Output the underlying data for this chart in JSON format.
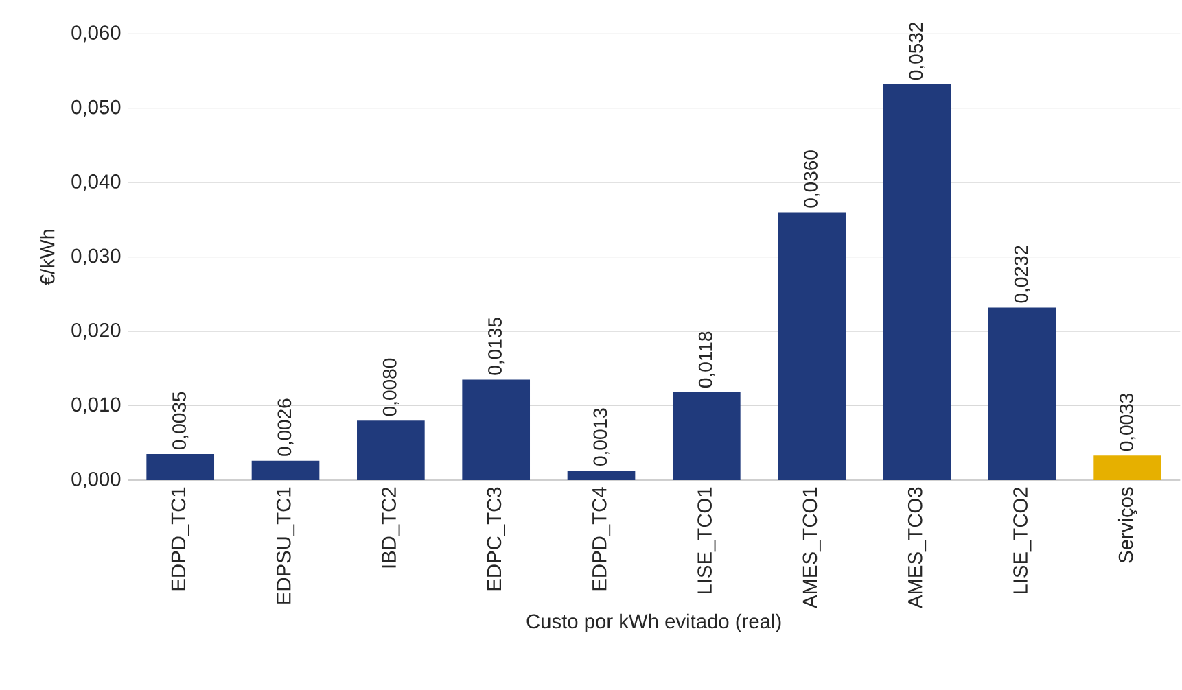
{
  "chart_data": {
    "type": "bar",
    "xlabel": "Custo por kWh evitado (real)",
    "ylabel": "€/kWh",
    "categories": [
      "EDPD_TC1",
      "EDPSU_TC1",
      "IBD_TC2",
      "EDPC_TC3",
      "EDPD_TC4",
      "LISE_TCO1",
      "AMES_TCO1",
      "AMES_TCO3",
      "LISE_TCO2",
      "Serviços"
    ],
    "values": [
      0.0035,
      0.0026,
      0.008,
      0.0135,
      0.0013,
      0.0118,
      0.036,
      0.0532,
      0.0232,
      0.0033
    ],
    "colors": [
      "#203a7c",
      "#203a7c",
      "#203a7c",
      "#203a7c",
      "#203a7c",
      "#203a7c",
      "#203a7c",
      "#203a7c",
      "#203a7c",
      "#e6b000"
    ],
    "value_labels": [
      "0,0035",
      "0,0026",
      "0,0080",
      "0,0135",
      "0,0013",
      "0,0118",
      "0,0360",
      "0,0532",
      "0,0232",
      "0,0033"
    ],
    "ylim": [
      0,
      0.06
    ],
    "yticks": [
      {
        "value": 0,
        "label": "0,000"
      },
      {
        "value": 0.01,
        "label": "0,010"
      },
      {
        "value": 0.02,
        "label": "0,020"
      },
      {
        "value": 0.03,
        "label": "0,030"
      },
      {
        "value": 0.04,
        "label": "0,040"
      },
      {
        "value": 0.05,
        "label": "0,050"
      },
      {
        "value": 0.06,
        "label": "0,060"
      }
    ],
    "grid": "y"
  }
}
